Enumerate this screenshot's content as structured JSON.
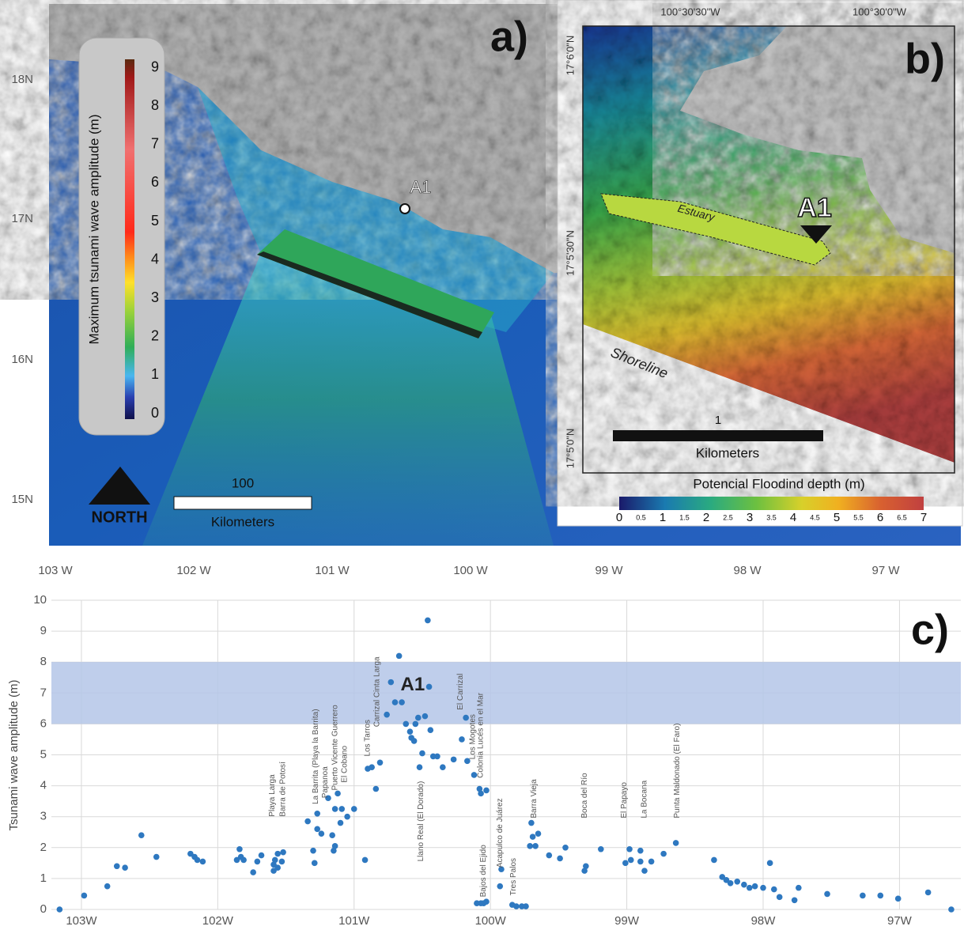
{
  "map_a": {
    "panel_label": "a)",
    "colorbar_title": "Maximum tsunami wave amplitude (m)",
    "colorbar_labels": [
      0,
      1,
      2,
      3,
      4,
      5,
      6,
      7,
      8,
      9
    ],
    "lat_labels": [
      "18N",
      "17N",
      "16N",
      "15N"
    ],
    "lon_labels": [
      "103 W",
      "102 W",
      "101 W",
      "100 W",
      "99 W",
      "98 W",
      "97 W"
    ],
    "point_label": "A1",
    "scale_value": "100",
    "scale_unit": "Kilometers",
    "north": "NORTH"
  },
  "map_b": {
    "panel_label": "b)",
    "lon_labels": [
      "100°30'30\"W",
      "100°30'0\"W"
    ],
    "lat_labels": [
      "17°6'0\"N",
      "17°5'30\"N",
      "17°5'0\"N"
    ],
    "estuary": "Estuary",
    "point_label": "A1",
    "shoreline": "Shoreline",
    "scale_value": "1",
    "scale_unit": "Kilometers",
    "colorbar_title": "Potencial Floodind depth (m)",
    "colorbar_labels": [
      0,
      0.5,
      1,
      1.5,
      2,
      2.5,
      3,
      3.5,
      4,
      4.5,
      5,
      5.5,
      6,
      6.5,
      7
    ]
  },
  "chart_data": {
    "type": "scatter",
    "panel_label": "c)",
    "y_label": "Tsunami wave amplitude (m)",
    "color": "#2e78c0",
    "grid": true,
    "band": [
      6,
      8
    ],
    "band_color": "#b4c5e8",
    "xlim": [
      -103.22,
      -96.55
    ],
    "ylim": [
      0,
      10
    ],
    "xticks": [
      {
        "value": -103,
        "label": "103W"
      },
      {
        "value": -102,
        "label": "102W"
      },
      {
        "value": -101,
        "label": "101W"
      },
      {
        "value": -100,
        "label": "100W"
      },
      {
        "value": -99,
        "label": "99W"
      },
      {
        "value": -98,
        "label": "98W"
      },
      {
        "value": -97,
        "label": "97W"
      }
    ],
    "yticks": [
      0,
      1,
      2,
      3,
      4,
      5,
      6,
      7,
      8,
      9,
      10
    ],
    "x": [
      -103.16,
      -102.98,
      -102.81,
      -102.74,
      -102.68,
      -102.56,
      -102.45,
      -102.2,
      -102.17,
      -102.15,
      -102.11,
      -101.86,
      -101.84,
      -101.83,
      -101.81,
      -101.74,
      -101.71,
      -101.68,
      -101.59,
      -101.59,
      -101.58,
      -101.56,
      -101.56,
      -101.53,
      -101.52,
      -101.34,
      -101.3,
      -101.29,
      -101.27,
      -101.27,
      -101.24,
      -101.19,
      -101.16,
      -101.15,
      -101.14,
      -101.14,
      -101.12,
      -101.1,
      -101.09,
      -101.05,
      -101.0,
      -100.92,
      -100.9,
      -100.87,
      -100.84,
      -100.81,
      -100.76,
      -100.73,
      -100.7,
      -100.67,
      -100.65,
      -100.62,
      -100.59,
      -100.58,
      -100.56,
      -100.55,
      -100.53,
      -100.52,
      -100.5,
      -100.48,
      -100.46,
      -100.45,
      -100.44,
      -100.42,
      -100.39,
      -100.35,
      -100.27,
      -100.21,
      -100.18,
      -100.17,
      -100.12,
      -100.1,
      -100.08,
      -100.07,
      -100.07,
      -100.05,
      -100.03,
      -100.03,
      -99.93,
      -99.92,
      -99.84,
      -99.81,
      -99.77,
      -99.74,
      -99.71,
      -99.7,
      -99.69,
      -99.67,
      -99.65,
      -99.57,
      -99.49,
      -99.45,
      -99.31,
      -99.3,
      -99.19,
      -99.01,
      -98.98,
      -98.97,
      -98.9,
      -98.9,
      -98.87,
      -98.82,
      -98.73,
      -98.64,
      -98.36,
      -98.3,
      -98.27,
      -98.24,
      -98.19,
      -98.14,
      -98.1,
      -98.06,
      -98.0,
      -97.95,
      -97.92,
      -97.88,
      -97.77,
      -97.74,
      -97.53,
      -97.27,
      -97.14,
      -97.01,
      -96.79,
      -96.62
    ],
    "values": [
      0,
      0.45,
      0.75,
      1.4,
      1.35,
      2.4,
      1.7,
      1.8,
      1.7,
      1.6,
      1.55,
      1.6,
      1.95,
      1.7,
      1.6,
      1.2,
      1.55,
      1.75,
      1.25,
      1.45,
      1.6,
      1.8,
      1.35,
      1.55,
      1.85,
      2.85,
      1.9,
      1.5,
      2.6,
      3.1,
      2.45,
      3.6,
      2.4,
      1.9,
      2.05,
      3.25,
      3.75,
      2.8,
      3.25,
      3.0,
      3.25,
      1.6,
      4.55,
      4.6,
      3.9,
      4.75,
      6.3,
      7.35,
      6.7,
      8.2,
      6.7,
      6.0,
      5.75,
      5.55,
      5.45,
      6.0,
      6.2,
      4.6,
      5.05,
      6.25,
      9.35,
      7.2,
      5.8,
      4.95,
      4.95,
      4.6,
      4.85,
      5.5,
      6.2,
      4.8,
      4.35,
      0.2,
      3.9,
      3.75,
      0.2,
      0.2,
      0.25,
      3.85,
      0.75,
      1.3,
      0.15,
      0.1,
      0.1,
      0.1,
      2.05,
      2.8,
      2.35,
      2.05,
      2.45,
      1.75,
      1.65,
      2.0,
      1.25,
      1.4,
      1.95,
      1.5,
      1.95,
      1.6,
      1.9,
      1.55,
      1.25,
      1.55,
      1.8,
      2.15,
      1.6,
      1.05,
      0.95,
      0.85,
      0.9,
      0.8,
      0.7,
      0.75,
      0.7,
      1.5,
      0.65,
      0.4,
      0.3,
      0.7,
      0.5,
      0.45,
      0.45,
      0.35,
      0.55,
      0
    ],
    "highlight": {
      "text": "A1",
      "x": -100.57,
      "y": 7.25
    },
    "annotations": [
      {
        "text": "Playa Larga",
        "x": -101.6,
        "y": 3.0
      },
      {
        "text": "Barra de Potosí",
        "x": -101.52,
        "y": 3.0
      },
      {
        "text": "La Barrita (Playa la Barrita)",
        "x": -101.28,
        "y": 3.4
      },
      {
        "text": "Papanoa",
        "x": -101.21,
        "y": 3.6
      },
      {
        "text": "Puerto Vicente Guerrero",
        "x": -101.14,
        "y": 3.85
      },
      {
        "text": "El Cobano",
        "x": -101.07,
        "y": 4.1
      },
      {
        "text": "Los Tarros",
        "x": -100.9,
        "y": 4.95
      },
      {
        "text": "Carrizal Cinta Larga",
        "x": -100.83,
        "y": 5.9
      },
      {
        "text": "Llano Real (El Dorado)",
        "x": -100.51,
        "y": 1.55
      },
      {
        "text": "El Carrizal",
        "x": -100.22,
        "y": 6.45
      },
      {
        "text": "Los Mogotes",
        "x": -100.13,
        "y": 4.85
      },
      {
        "text": "Colonia Lucés en el Mar",
        "x": -100.07,
        "y": 4.25
      },
      {
        "text": "Bajos del Ejido",
        "x": -100.05,
        "y": 0.4
      },
      {
        "text": "Acapulco de Juárez",
        "x": -99.93,
        "y": 1.35
      },
      {
        "text": "Tres Palos",
        "x": -99.83,
        "y": 0.45
      },
      {
        "text": "Barra Vieja",
        "x": -99.68,
        "y": 2.95
      },
      {
        "text": "Boca del Río",
        "x": -99.31,
        "y": 2.95
      },
      {
        "text": "El Papayo",
        "x": -99.02,
        "y": 2.95
      },
      {
        "text": "La Bocana",
        "x": -98.87,
        "y": 2.95
      },
      {
        "text": "Punta Maldonado (El Faro)",
        "x": -98.63,
        "y": 2.95
      }
    ]
  }
}
